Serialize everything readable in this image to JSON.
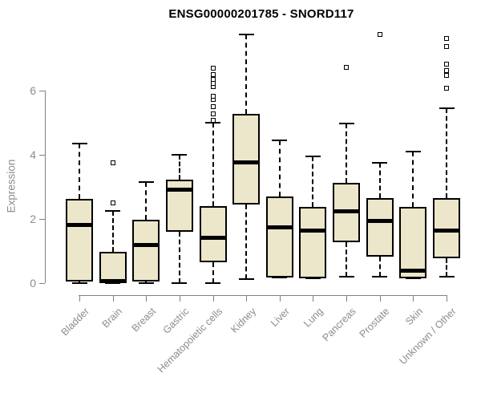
{
  "title": "ENSG00000201785 - SNORD117",
  "colors": {
    "box_fill": "#ece6ca",
    "box_border": "#000000",
    "axis": "#808080",
    "label_gray": "#8c8c8c",
    "title_color": "#000000",
    "background": "#ffffff"
  },
  "chart_data": {
    "type": "boxplot",
    "title": "ENSG00000201785 - SNORD117",
    "xlabel": "",
    "ylabel": "Expression",
    "y_ticks": [
      0,
      2,
      4,
      6
    ],
    "ylim": [
      0,
      7.8
    ],
    "grid": false,
    "legend": "none",
    "categories": [
      "Bladder",
      "Brain",
      "Breast",
      "Gastric",
      "Hematopoietic cells",
      "Kidney",
      "Liver",
      "Lung",
      "Pancreas",
      "Prostate",
      "Skin",
      "Unknown / Other"
    ],
    "boxes": [
      {
        "name": "Bladder",
        "min": 0,
        "q1": 0.05,
        "median": 1.82,
        "q3": 2.62,
        "max": 4.35,
        "outliers": []
      },
      {
        "name": "Brain",
        "min": 0,
        "q1": 0.02,
        "median": 0.07,
        "q3": 0.97,
        "max": 2.25,
        "outliers": [
          2.5,
          3.75
        ]
      },
      {
        "name": "Breast",
        "min": 0,
        "q1": 0.05,
        "median": 1.2,
        "q3": 1.97,
        "max": 3.15,
        "outliers": []
      },
      {
        "name": "Gastric",
        "min": 0,
        "q1": 1.6,
        "median": 2.92,
        "q3": 3.22,
        "max": 4.0,
        "outliers": []
      },
      {
        "name": "Hematopoietic cells",
        "min": 0,
        "q1": 0.65,
        "median": 1.42,
        "q3": 2.4,
        "max": 5.0,
        "outliers": [
          5.07,
          5.27,
          5.5,
          5.72,
          5.82,
          6.12,
          6.22,
          6.35,
          6.5,
          6.7
        ]
      },
      {
        "name": "Kidney",
        "min": 0.12,
        "q1": 2.45,
        "median": 3.77,
        "q3": 5.27,
        "max": 7.75,
        "outliers": []
      },
      {
        "name": "Liver",
        "min": 0.17,
        "q1": 0.17,
        "median": 1.75,
        "q3": 2.7,
        "max": 4.45,
        "outliers": []
      },
      {
        "name": "Lung",
        "min": 0.15,
        "q1": 0.15,
        "median": 1.65,
        "q3": 2.37,
        "max": 3.95,
        "outliers": []
      },
      {
        "name": "Pancreas",
        "min": 0.2,
        "q1": 1.27,
        "median": 2.25,
        "q3": 3.12,
        "max": 4.97,
        "outliers": [
          6.72
        ]
      },
      {
        "name": "Prostate",
        "min": 0.2,
        "q1": 0.82,
        "median": 1.95,
        "q3": 2.65,
        "max": 3.75,
        "outliers": [
          7.75
        ]
      },
      {
        "name": "Skin",
        "min": 0.15,
        "q1": 0.15,
        "median": 0.4,
        "q3": 2.37,
        "max": 4.1,
        "outliers": []
      },
      {
        "name": "Unknown / Other",
        "min": 0.2,
        "q1": 0.77,
        "median": 1.65,
        "q3": 2.65,
        "max": 5.45,
        "outliers": [
          6.08,
          6.48,
          6.63,
          6.83,
          7.38,
          7.63
        ]
      }
    ]
  }
}
